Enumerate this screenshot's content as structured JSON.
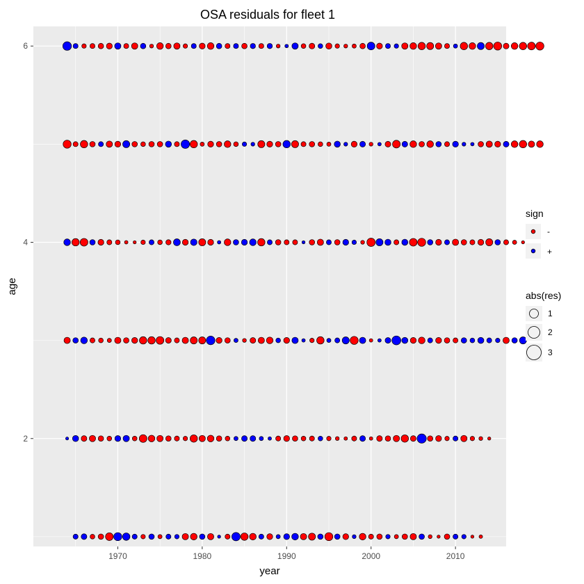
{
  "chart_data": {
    "type": "scatter",
    "title": "OSA residuals for fleet 1",
    "xlabel": "year",
    "ylabel": "age",
    "xlim": [
      1960,
      2016
    ],
    "ylim": [
      0.9,
      6.2
    ],
    "x_ticks": [
      1970,
      1980,
      1990,
      2000,
      2010
    ],
    "y_ticks": [
      2,
      4,
      6
    ],
    "grid": true,
    "colors": {
      "negative": "#ff0000",
      "positive": "#0000ff",
      "panel": "#ebebeb",
      "grid": "#ffffff"
    },
    "legend": {
      "placement": "right",
      "sign": {
        "title": "sign",
        "entries": [
          {
            "label": "-",
            "color": "#ff0000"
          },
          {
            "label": "+",
            "color": "#0000ff"
          }
        ]
      },
      "size": {
        "title": "abs(res)",
        "entries": [
          {
            "label": "1",
            "value": 1
          },
          {
            "label": "2",
            "value": 2
          },
          {
            "label": "3",
            "value": 3
          }
        ]
      }
    },
    "series": [
      {
        "age": 6,
        "first_year": 1964,
        "residuals": [
          3.0,
          1.0,
          -0.8,
          -1.0,
          -1.2,
          -1.4,
          1.6,
          -1.0,
          -1.6,
          1.2,
          -0.6,
          -1.8,
          -1.2,
          -1.6,
          -0.8,
          1.0,
          -1.4,
          -1.8,
          1.2,
          -1.0,
          1.0,
          -1.2,
          1.1,
          -1.0,
          1.1,
          -0.6,
          0.5,
          1.6,
          -0.9,
          -1.3,
          0.9,
          -1.5,
          -0.8,
          -0.6,
          -0.7,
          -1.2,
          2.4,
          -1.4,
          1.0,
          0.8,
          -1.6,
          -1.8,
          -2.2,
          -2.0,
          -1.6,
          -1.0,
          0.7,
          -2.2,
          -1.8,
          2.0,
          -2.2,
          -2.6,
          -1.3,
          -1.8,
          -2.2,
          -2.4,
          -2.6
        ]
      },
      {
        "age": 5,
        "first_year": 1964,
        "residuals": [
          -2.6,
          -1.0,
          -2.2,
          -1.2,
          1.0,
          -1.6,
          -1.4,
          2.0,
          -1.2,
          -0.9,
          -1.2,
          -1.2,
          1.5,
          -1.0,
          2.9,
          -2.2,
          -0.7,
          -1.4,
          -1.2,
          -1.8,
          -0.9,
          0.8,
          0.6,
          -2.0,
          -1.4,
          -1.2,
          2.2,
          -2.0,
          -1.0,
          -1.2,
          -0.9,
          -0.7,
          1.5,
          0.6,
          -1.4,
          1.3,
          -0.6,
          0.5,
          -1.3,
          -2.4,
          1.3,
          -1.8,
          -1.2,
          -1.8,
          1.2,
          -1.0,
          1.4,
          0.6,
          0.5,
          -1.2,
          -1.6,
          -1.4,
          1.3,
          -1.8,
          -2.2,
          -1.6,
          -1.8
        ]
      },
      {
        "age": 4,
        "first_year": 1964,
        "residuals": [
          1.8,
          -2.2,
          -2.4,
          1.2,
          -1.4,
          -1.0,
          -0.9,
          -0.5,
          -0.4,
          -0.8,
          1.0,
          -0.9,
          -1.1,
          1.9,
          -1.4,
          1.7,
          -2.0,
          -1.4,
          0.5,
          -1.8,
          1.2,
          1.4,
          1.8,
          -2.2,
          1.0,
          -1.2,
          -1.0,
          -1.0,
          0.4,
          -1.2,
          -1.6,
          1.0,
          -1.2,
          1.4,
          0.8,
          -0.6,
          -2.8,
          2.0,
          1.5,
          -1.0,
          1.5,
          -2.4,
          -2.6,
          1.2,
          -1.4,
          1.0,
          -1.6,
          -1.2,
          -1.0,
          -1.4,
          -2.0,
          1.2,
          -1.0,
          -0.7,
          -0.4
        ]
      },
      {
        "age": 3,
        "first_year": 1964,
        "residuals": [
          -1.6,
          1.2,
          1.8,
          -1.0,
          -0.9,
          -0.7,
          -1.6,
          -1.2,
          -1.4,
          -2.2,
          -2.2,
          -2.4,
          -1.3,
          -1.0,
          -1.6,
          -2.0,
          -2.0,
          3.0,
          -1.4,
          -1.2,
          0.7,
          -0.6,
          -1.3,
          -1.6,
          -1.8,
          0.9,
          -1.4,
          1.6,
          0.5,
          -0.8,
          -2.2,
          0.7,
          1.0,
          2.0,
          -2.6,
          1.6,
          -0.5,
          0.5,
          1.3,
          3.2,
          1.5,
          -1.4,
          -1.8,
          1.0,
          -1.4,
          -1.2,
          -1.0,
          1.2,
          0.9,
          1.5,
          1.0,
          0.8,
          -1.6,
          1.2,
          2.0
        ]
      },
      {
        "age": 2,
        "first_year": 1964,
        "residuals": [
          0.3,
          1.5,
          -1.3,
          -1.6,
          -1.2,
          -0.9,
          1.4,
          1.6,
          -0.9,
          -2.4,
          -1.8,
          -1.6,
          -1.2,
          -1.0,
          -0.8,
          -2.2,
          -1.6,
          -1.8,
          -1.2,
          -0.9,
          0.7,
          1.3,
          1.3,
          0.7,
          0.5,
          -1.0,
          -1.4,
          -1.2,
          -0.9,
          -1.0,
          0.9,
          -0.8,
          -0.6,
          -0.5,
          -1.0,
          1.3,
          -0.5,
          -1.3,
          -1.2,
          -1.6,
          -2.2,
          -1.3,
          3.4,
          -1.2,
          -1.4,
          -0.8,
          1.0,
          -1.6,
          -0.8,
          -0.6,
          -0.4
        ]
      },
      {
        "age": 1,
        "first_year": 1965,
        "residuals": [
          1.0,
          1.3,
          -0.9,
          -1.2,
          -2.4,
          2.6,
          2.2,
          1.0,
          -0.8,
          1.2,
          -0.7,
          1.0,
          0.8,
          -1.6,
          -1.8,
          1.2,
          -1.6,
          0.4,
          -1.0,
          2.8,
          -2.2,
          -1.8,
          1.0,
          -1.4,
          0.7,
          1.4,
          1.8,
          -1.6,
          -2.0,
          1.2,
          -2.6,
          1.2,
          -1.4,
          0.6,
          -1.8,
          -1.0,
          -1.2,
          0.8,
          -0.7,
          -1.2,
          -1.6,
          1.2,
          -0.6,
          -0.4,
          -1.2,
          1.0,
          0.8,
          -0.4,
          -0.5
        ]
      }
    ]
  }
}
